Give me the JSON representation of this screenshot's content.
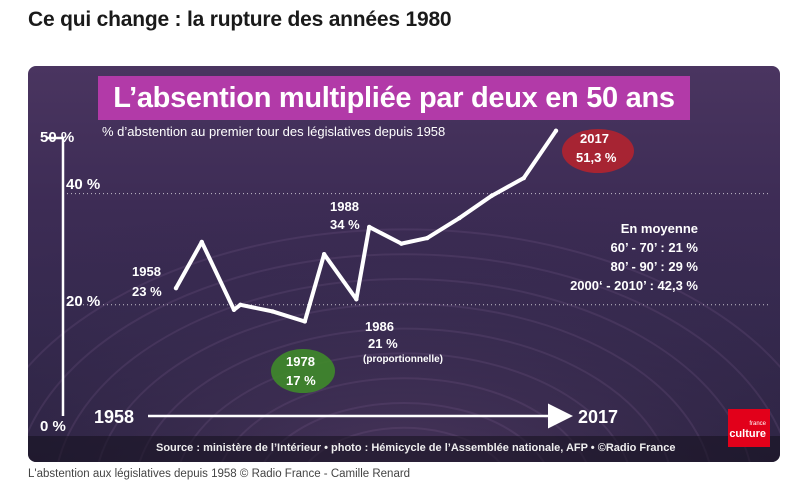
{
  "page": {
    "heading": "Ce qui change : la rupture des années 1980",
    "caption": "L'abstention aux législatives depuis 1958 © Radio France - Camille Renard"
  },
  "chart_data": {
    "type": "line",
    "title": "L’absention multipliée par deux en 50 ans",
    "subtitle": "% d’abstention au premier tour des législatives depuis 1958",
    "ylim": [
      0,
      50
    ],
    "y_ticks": [
      "0 %",
      "20 %",
      "40 %",
      "50 %"
    ],
    "x_start_label": "1958",
    "x_end_label": "2017",
    "grid": "dotted lines at 20 % and 40 %",
    "series": [
      {
        "x": [
          1958,
          1962,
          1967,
          1968,
          1973,
          1978,
          1981,
          1986,
          1988,
          1993,
          1997,
          2002,
          2007,
          2012,
          2017
        ],
        "values": [
          23,
          31.3,
          19.1,
          20,
          18.8,
          17,
          29.1,
          21,
          34,
          31,
          32,
          35.6,
          39.6,
          42.8,
          51.3
        ]
      }
    ],
    "annotations": {
      "y1958": "1958",
      "v1958": "23 %",
      "y1978": "1978",
      "v1978": "17 %",
      "y1986": "1986",
      "v1986": "21 %",
      "n1986": "(proportionnelle)",
      "y1988": "1988",
      "v1988": "34 %",
      "y2017": "2017",
      "v2017": "51,3 %"
    },
    "averages": {
      "heading": "En moyenne",
      "line1": "60’ - 70’ : 21 %",
      "line2": "80’ - 90’ : 29 %",
      "line3": "2000‘ - 2010’ : 42,3 %"
    },
    "source": "Source : ministère de l’Intérieur  •  photo : Hémicycle de l’Assemblée nationale, AFP  •  ©Radio France",
    "logo": {
      "small": "france",
      "main": "culture"
    },
    "colors": {
      "background": "#3d2c55",
      "title_banner": "#b23aa8",
      "line": "#ffffff",
      "highlight_2017": "#b3232f",
      "highlight_1978": "#3f8a2a"
    }
  }
}
